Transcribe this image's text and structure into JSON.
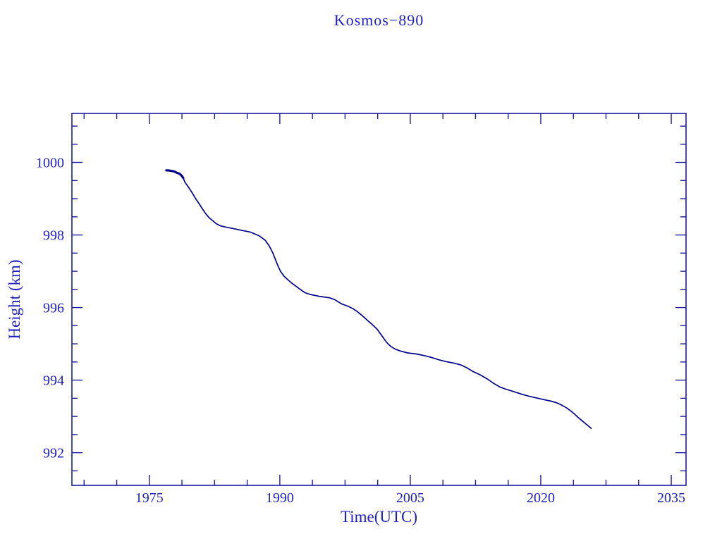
{
  "figure": {
    "title": "Kosmos−890",
    "xlabel": "Time(UTC)",
    "ylabel": "Height (km)"
  },
  "chart_data": {
    "type": "line",
    "title": "Kosmos−890",
    "xlabel": "Time(UTC)",
    "ylabel": "Height (km)",
    "xlim": [
      1966.1,
      2036.7
    ],
    "ylim": [
      991.1,
      1001.35
    ],
    "x_major_ticks": [
      1975,
      1990,
      2005,
      2020,
      2035
    ],
    "x_minor_step": 3.75,
    "y_major_ticks": [
      992,
      994,
      996,
      998,
      1000
    ],
    "y_minor_step": 0.5,
    "grid": false,
    "legend": "none",
    "line_color": "#00008b",
    "axis_color": "#1a1a9c",
    "text_color": "#2121bd",
    "dense_segment_end_year": 1978.95,
    "series": [
      {
        "name": "height_km",
        "points": [
          [
            1976.95,
            999.78
          ],
          [
            1977.2,
            999.78
          ],
          [
            1977.45,
            999.77
          ],
          [
            1977.7,
            999.76
          ],
          [
            1977.95,
            999.74
          ],
          [
            1978.2,
            999.71
          ],
          [
            1978.45,
            999.69
          ],
          [
            1978.7,
            999.64
          ],
          [
            1978.9,
            999.57
          ],
          [
            1979.1,
            999.45
          ],
          [
            1979.5,
            999.32
          ],
          [
            1979.9,
            999.17
          ],
          [
            1980.3,
            999.01
          ],
          [
            1980.7,
            998.87
          ],
          [
            1981.1,
            998.72
          ],
          [
            1981.5,
            998.58
          ],
          [
            1981.9,
            998.47
          ],
          [
            1982.3,
            998.39
          ],
          [
            1982.7,
            998.31
          ],
          [
            1983.2,
            998.25
          ],
          [
            1983.9,
            998.21
          ],
          [
            1984.6,
            998.18
          ],
          [
            1985.4,
            998.14
          ],
          [
            1986.6,
            998.08
          ],
          [
            1987.6,
            997.98
          ],
          [
            1988.3,
            997.86
          ],
          [
            1988.8,
            997.69
          ],
          [
            1989.2,
            997.5
          ],
          [
            1989.5,
            997.32
          ],
          [
            1989.8,
            997.14
          ],
          [
            1990.1,
            996.99
          ],
          [
            1990.5,
            996.86
          ],
          [
            1990.9,
            996.77
          ],
          [
            1991.4,
            996.67
          ],
          [
            1991.9,
            996.58
          ],
          [
            1992.4,
            996.49
          ],
          [
            1992.9,
            996.41
          ],
          [
            1993.5,
            996.36
          ],
          [
            1994.5,
            996.31
          ],
          [
            1995.7,
            996.27
          ],
          [
            1996.3,
            996.22
          ],
          [
            1997.1,
            996.1
          ],
          [
            1997.8,
            996.04
          ],
          [
            1998.4,
            995.97
          ],
          [
            1998.9,
            995.89
          ],
          [
            1999.3,
            995.81
          ],
          [
            1999.7,
            995.73
          ],
          [
            2000.1,
            995.64
          ],
          [
            2000.5,
            995.56
          ],
          [
            2000.9,
            995.47
          ],
          [
            2001.2,
            995.4
          ],
          [
            2001.5,
            995.3
          ],
          [
            2001.8,
            995.2
          ],
          [
            2002.1,
            995.1
          ],
          [
            2002.4,
            995.01
          ],
          [
            2002.8,
            994.92
          ],
          [
            2003.3,
            994.85
          ],
          [
            2003.9,
            994.8
          ],
          [
            2004.7,
            994.75
          ],
          [
            2005.7,
            994.72
          ],
          [
            2006.7,
            994.67
          ],
          [
            2007.5,
            994.62
          ],
          [
            2008.3,
            994.56
          ],
          [
            2009.1,
            994.51
          ],
          [
            2010.0,
            994.47
          ],
          [
            2010.8,
            994.42
          ],
          [
            2011.5,
            994.34
          ],
          [
            2012.2,
            994.24
          ],
          [
            2013.0,
            994.15
          ],
          [
            2013.8,
            994.04
          ],
          [
            2014.6,
            993.91
          ],
          [
            2015.3,
            993.81
          ],
          [
            2016.0,
            993.75
          ],
          [
            2016.8,
            993.69
          ],
          [
            2017.7,
            993.62
          ],
          [
            2018.6,
            993.56
          ],
          [
            2019.5,
            993.51
          ],
          [
            2020.4,
            993.46
          ],
          [
            2021.2,
            993.42
          ],
          [
            2021.9,
            993.37
          ],
          [
            2022.5,
            993.3
          ],
          [
            2023.0,
            993.23
          ],
          [
            2023.5,
            993.14
          ],
          [
            2023.9,
            993.06
          ],
          [
            2024.3,
            992.97
          ],
          [
            2024.7,
            992.89
          ],
          [
            2025.1,
            992.81
          ],
          [
            2025.5,
            992.73
          ],
          [
            2025.8,
            992.67
          ]
        ]
      }
    ]
  }
}
